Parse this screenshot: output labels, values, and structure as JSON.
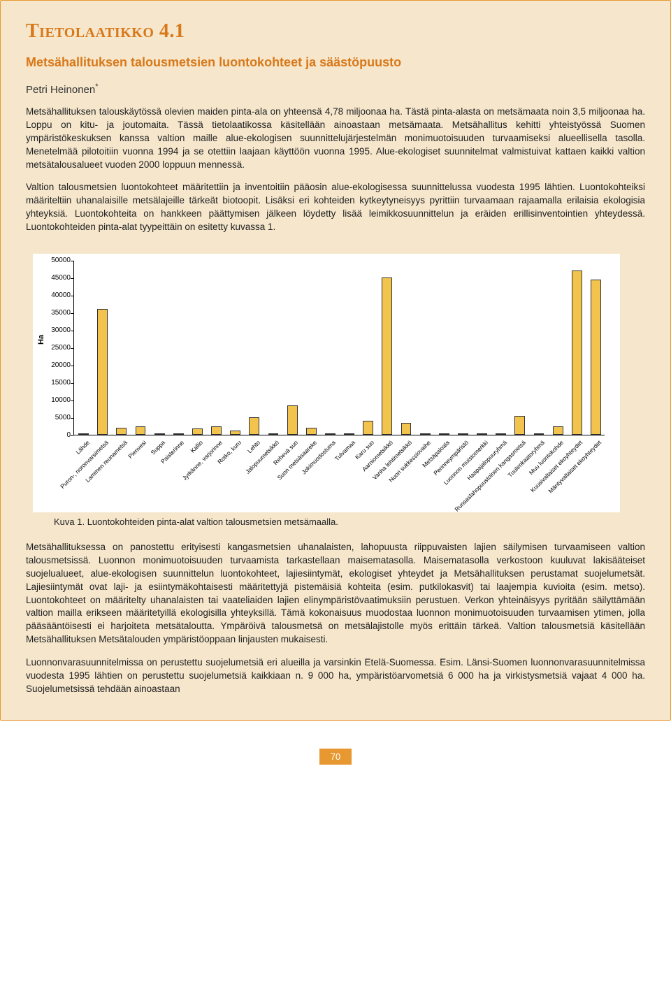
{
  "title": "Tietolaatikko 4.1",
  "subtitle": "Metsähallituksen talousmetsien luontokohteet ja säästöpuusto",
  "author": "Petri Heinonen",
  "author_mark": "*",
  "paragraphs": {
    "p1": "Metsähallituksen talouskäytössä olevien maiden pinta-ala on yhteensä 4,78 miljoonaa ha. Tästä pinta-alasta on metsämaata noin 3,5 miljoonaa ha. Loppu on kitu- ja joutomaita. Tässä tietolaatikossa käsitellään ainoastaan metsämaata. Metsähallitus kehitti yhteistyössä Suomen ympäristökeskuksen kanssa valtion maille alue-ekologisen suunnittelujärjestelmän monimuotoisuuden turvaamiseksi alueellisella tasolla. Menetelmää pilotoitiin vuonna 1994 ja se otettiin laajaan käyttöön vuonna 1995. Alue-ekologiset suunnitelmat valmistuivat kattaen kaikki valtion metsätalousalueet vuoden 2000 loppuun mennessä.",
    "p2": "Valtion talousmetsien luontokohteet määritettiin ja inventoitiin pääosin alue-ekologisessa suunnittelussa vuodesta 1995 lähtien. Luontokohteiksi määriteltiin uhanalaisille metsälajeille tärkeät biotoopit. Lisäksi eri kohteiden kytkeytyneisyys pyrittiin turvaamaan rajaamalla erilaisia ekologisia yhteyksiä. Luontokohteita on hankkeen päättymisen jälkeen löydetty lisää leimikkosuunnittelun ja eräiden erillisinventointien yhteydessä. Luontokohteiden pinta-alat tyypeittäin on esitetty kuvassa 1.",
    "p3": "Metsähallituksessa on panostettu erityisesti kangasmetsien uhanalaisten, lahopuusta riippuvaisten lajien säilymisen turvaamiseen valtion talousmetsissä. Luonnon monimuotoisuuden turvaamista tarkastellaan maisematasolla. Maisematasolla verkostoon kuuluvat lakisääteiset suojelualueet, alue-ekologisen suunnittelun luontokohteet, lajiesiintymät, ekologiset yhteydet ja Metsähallituksen perustamat suojelumetsät. Lajiesiintymät ovat laji- ja esiintymäkohtaisesti määritettyjä pistemäisiä kohteita (esim. putkilokasvit) tai laajempia kuvioita (esim. metso). Luontokohteet on määritelty uhanalaisten tai vaateliaiden lajien elinympäristövaatimuksiin perustuen. Verkon yhteinäisyys pyritään säilyttämään valtion mailla erikseen määritetyillä ekologisilla yhteyksillä. Tämä kokonaisuus muodostaa luonnon monimuotoisuuden turvaamisen ytimen, jolla pääsääntöisesti ei harjoiteta metsätaloutta. Ympäröivä talousmetsä on metsälajistolle myös erittäin tärkeä. Valtion talousmetsiä käsitellään Metsähallituksen Metsätalouden ympäristöoppaan linjausten mukaisesti.",
    "p4": "Luonnonvarasuunnitelmissa on perustettu suojelumetsiä eri alueilla ja varsinkin Etelä-Suomessa. Esim. Länsi-Suomen luonnonvarasuunnitelmissa vuodesta 1995 lähtien on perustettu suojelumetsiä kaikkiaan n. 9 000 ha, ympäristöarvometsiä 6 000 ha ja virkistysmetsiä vajaat 4 000 ha. Suojelumetsissä tehdään ainoastaan"
  },
  "figure_caption": "Kuva 1. Luontokohteiden pinta-alat valtion talousmetsien metsämaalla.",
  "page_number": "70",
  "chart": {
    "type": "bar",
    "ylabel": "Ha",
    "ylim": [
      0,
      50000
    ],
    "ytick_step": 5000,
    "bar_color": "#f2c44e",
    "bar_border": "#333333",
    "background_color": "#ffffff",
    "text_color": "#000000",
    "label_fontsize": 10,
    "categories": [
      "Lähde",
      "Puron-, noronvarsimetsä",
      "Lammen reunametsä",
      "Pienvesi",
      "Suppa",
      "Paisterinne",
      "Kallio",
      "Jyrkänne, varjorinne",
      "Rotko, kuru",
      "Lehto",
      "Jalopuumetsikkö",
      "Rehevä suo",
      "Suon metsäsaareke",
      "Jokimuodostuma",
      "Tulvamaa",
      "Karu suo",
      "Aarniometsikkö",
      "Vanha lehtimetsikkö",
      "Nuori sukkessiovaihe",
      "Metsäpaloala",
      "Perinneympäristö",
      "Luonnon muistomerkki",
      "Haapajalopuuryhmä",
      "Runsaslahopuustoinen kangasmetsä",
      "Tuulenkaatoryhmä",
      "Muu luontokohde",
      "Kuusivaltaiset ekoyhteydet",
      "Mäntyvaltaiset ekoyhteydet"
    ],
    "values": [
      500,
      36000,
      2000,
      2500,
      200,
      300,
      1800,
      2500,
      1200,
      5000,
      100,
      8500,
      2000,
      400,
      200,
      4000,
      45000,
      3500,
      200,
      200,
      200,
      100,
      200,
      5500,
      200,
      2500,
      47000,
      44500
    ]
  }
}
